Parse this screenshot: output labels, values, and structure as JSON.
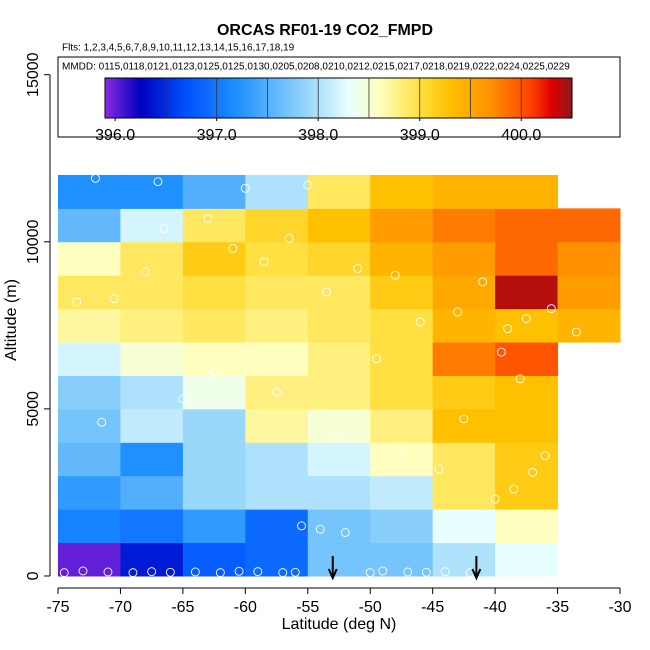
{
  "chart_data": {
    "type": "heatmap",
    "title": "ORCAS RF01-19 CO2_FMPD",
    "subtitle": "Flts: 1,2,3,4,5,6,7,8,9,10,11,12,13,14,15,16,17,18,19",
    "legend_title": "MMDD: 0115,0118,0121,0123,0125,0125,0130,0205,0208,0210,0212,0215,0217,0218,0219,0222,0224,0225,0229",
    "x_label": "Latitude (deg N)",
    "y_label": "Altitude (m)",
    "xlim": [
      -75,
      -30
    ],
    "ylim": [
      -300,
      15500
    ],
    "xticks": [
      -75,
      -70,
      -65,
      -60,
      -55,
      -50,
      -45,
      -40,
      -35,
      -30
    ],
    "yticks": [
      0,
      5000,
      10000,
      15000
    ],
    "x_edges": [
      -75,
      -70,
      -65,
      -60,
      -55,
      -50,
      -45,
      -40,
      -35,
      -30
    ],
    "y_edges": [
      0,
      1000,
      2000,
      3000,
      4000,
      5000,
      6000,
      7000,
      8000,
      9000,
      10000,
      11000,
      12000
    ],
    "values": [
      [
        396.0,
        396.4,
        396.8,
        396.9,
        397.7,
        397.7,
        398.0,
        398.3,
        null
      ],
      [
        397.1,
        397.0,
        397.3,
        396.9,
        397.7,
        397.8,
        398.3,
        398.6,
        null
      ],
      [
        397.3,
        397.5,
        397.9,
        398.0,
        398.0,
        398.1,
        398.9,
        399.2,
        null
      ],
      [
        397.6,
        397.2,
        397.9,
        398.0,
        398.2,
        398.6,
        398.9,
        399.2,
        null
      ],
      [
        397.7,
        398.1,
        397.9,
        398.7,
        398.5,
        398.8,
        399.3,
        399.3,
        null
      ],
      [
        397.8,
        398.0,
        398.4,
        398.8,
        398.8,
        399.0,
        399.2,
        399.3,
        null
      ],
      [
        398.2,
        398.5,
        398.6,
        398.6,
        398.8,
        399.0,
        399.8,
        400.0,
        null
      ],
      [
        398.7,
        398.8,
        398.9,
        398.8,
        398.9,
        399.0,
        399.4,
        399.3,
        399.4
      ],
      [
        398.9,
        398.9,
        399.0,
        398.9,
        398.9,
        399.2,
        399.5,
        400.4,
        399.6
      ],
      [
        398.6,
        398.9,
        399.2,
        399.0,
        399.1,
        399.4,
        399.6,
        399.9,
        399.7
      ],
      [
        397.6,
        398.2,
        398.9,
        399.1,
        399.3,
        399.6,
        399.8,
        399.9,
        399.9
      ],
      [
        397.2,
        397.2,
        397.5,
        398.0,
        398.9,
        399.3,
        399.4,
        399.4,
        null
      ]
    ],
    "colorbar": {
      "lim": [
        395.9,
        400.5
      ],
      "ticks": [
        {
          "value": 396,
          "label": "396.0"
        },
        {
          "value": 397,
          "label": "397.0"
        },
        {
          "value": 398,
          "label": "398.0"
        },
        {
          "value": 399,
          "label": "399.0"
        },
        {
          "value": 400,
          "label": "400.0"
        }
      ],
      "breaks": [
        396.5,
        397,
        397.5,
        398,
        398.5,
        399,
        399.5,
        400
      ],
      "stops": [
        {
          "value": 395.9,
          "color": "#8a2be2"
        },
        {
          "value": 396.25,
          "color": "#0000c0"
        },
        {
          "value": 396.7,
          "color": "#0050ff"
        },
        {
          "value": 397.2,
          "color": "#1e90ff"
        },
        {
          "value": 397.8,
          "color": "#87cefa"
        },
        {
          "value": 398.3,
          "color": "#e8ffff"
        },
        {
          "value": 398.6,
          "color": "#ffffc0"
        },
        {
          "value": 399.0,
          "color": "#ffe040"
        },
        {
          "value": 399.3,
          "color": "#ffc000"
        },
        {
          "value": 399.7,
          "color": "#ff9000"
        },
        {
          "value": 400.1,
          "color": "#ff4000"
        },
        {
          "value": 400.3,
          "color": "#e00000"
        },
        {
          "value": 400.5,
          "color": "#8b1a1a"
        }
      ]
    },
    "points": {
      "x": [
        -74.5,
        -73,
        -71,
        -69,
        -67.5,
        -66,
        -64,
        -62,
        -60.5,
        -59,
        -57,
        -56,
        -55.5,
        -54,
        -52,
        -50,
        -49,
        -47,
        -45.5,
        -44,
        -42,
        -40,
        -38.5,
        -37,
        -36,
        -73.5,
        -70.5,
        -68,
        -66.5,
        -63,
        -61,
        -58.5,
        -56.5,
        -53.5,
        -51,
        -48,
        -46,
        -43,
        -41,
        -39,
        -37.5,
        -71.5,
        -65,
        -62.5,
        -57.5,
        -52.5,
        -47.5,
        -42.5,
        -38,
        -35.5,
        -33.5,
        -72,
        -67,
        -60,
        -55,
        -49.5,
        -44.5,
        -39.5
      ],
      "y": [
        100,
        150,
        120,
        100,
        130,
        110,
        120,
        100,
        140,
        130,
        100,
        110,
        1500,
        1400,
        1300,
        100,
        150,
        120,
        110,
        130,
        100,
        2300,
        2600,
        3100,
        3600,
        8200,
        8300,
        9100,
        10400,
        10700,
        9800,
        9400,
        10100,
        8500,
        9200,
        9000,
        7600,
        7900,
        8800,
        7400,
        7700,
        4600,
        5300,
        6100,
        5500,
        4200,
        3800,
        4700,
        5900,
        8000,
        7300,
        11900,
        11800,
        11600,
        11700,
        6500,
        3200,
        6700
      ]
    },
    "arrows_x": [
      -53,
      -41.5
    ]
  }
}
